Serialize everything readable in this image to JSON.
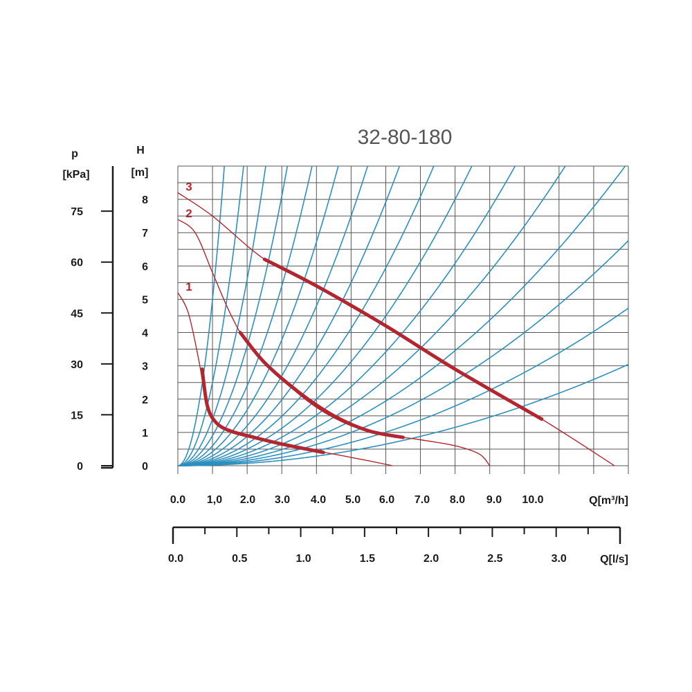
{
  "chart_data": {
    "type": "line",
    "title": "32-80-180",
    "y_left": {
      "name": "p",
      "unit": "[kPa]",
      "ticks": [
        "0",
        "15",
        "30",
        "45",
        "60",
        "75"
      ],
      "ticks_values": [
        0,
        15,
        30,
        45,
        60,
        75
      ]
    },
    "y_main": {
      "name": "H",
      "unit": "[m]",
      "ticks": [
        "0",
        "1",
        "2",
        "3",
        "4",
        "5",
        "6",
        "7",
        "8"
      ],
      "ylim": [
        0,
        9
      ]
    },
    "x_main": {
      "label": "Q[m³/h]",
      "ticks": [
        "0.0",
        "1,0",
        "2.0",
        "3.0",
        "4.0",
        "5.0",
        "6.0",
        "7.0",
        "8.0",
        "9.0",
        "10.0"
      ],
      "xlim": [
        0,
        13
      ]
    },
    "x_secondary": {
      "label": "Q[l/s]",
      "ticks": [
        "0.0",
        "0.5",
        "1.0",
        "1.5",
        "2.0",
        "2.5",
        "3.0"
      ],
      "ticks_values": [
        0,
        0.5,
        1.0,
        1.5,
        2.0,
        2.5,
        3.0
      ],
      "xlim": [
        0,
        3.5
      ]
    },
    "grid": true,
    "colors": {
      "pump_curve": "#b3262f",
      "system_curve": "#2b8fbf",
      "grid": "#555555",
      "axis": "#1a1a1a"
    },
    "series": [
      {
        "name": "1",
        "line": [
          [
            0,
            5.2
          ],
          [
            0.3,
            4.6
          ],
          [
            0.6,
            3.2
          ],
          [
            0.8,
            2.0
          ],
          [
            1.0,
            1.4
          ],
          [
            1.5,
            1.05
          ],
          [
            2.5,
            0.8
          ],
          [
            3.5,
            0.55
          ],
          [
            4.5,
            0.35
          ],
          [
            5.5,
            0.15
          ],
          [
            6.2,
            0.0
          ]
        ],
        "highlight": [
          [
            0.7,
            2.9
          ],
          [
            0.85,
            1.8
          ],
          [
            1.1,
            1.3
          ],
          [
            1.5,
            1.05
          ],
          [
            2.2,
            0.85
          ],
          [
            3.0,
            0.65
          ],
          [
            4.2,
            0.4
          ]
        ]
      },
      {
        "name": "2",
        "line": [
          [
            0,
            7.4
          ],
          [
            0.5,
            7.0
          ],
          [
            1.0,
            5.8
          ],
          [
            1.5,
            4.6
          ],
          [
            2.0,
            3.7
          ],
          [
            3.0,
            2.6
          ],
          [
            4.0,
            1.75
          ],
          [
            5.0,
            1.2
          ],
          [
            6.0,
            0.92
          ],
          [
            6.5,
            0.85
          ],
          [
            7.0,
            0.78
          ],
          [
            8.0,
            0.6
          ],
          [
            8.7,
            0.35
          ],
          [
            9.0,
            0.0
          ]
        ],
        "highlight": [
          [
            1.8,
            4.0
          ],
          [
            2.5,
            3.1
          ],
          [
            3.5,
            2.2
          ],
          [
            4.5,
            1.5
          ],
          [
            5.5,
            1.05
          ],
          [
            6.5,
            0.85
          ]
        ]
      },
      {
        "name": "3",
        "line": [
          [
            0,
            8.2
          ],
          [
            1.0,
            7.5
          ],
          [
            2.5,
            6.2
          ],
          [
            4.0,
            5.4
          ],
          [
            6.0,
            4.2
          ],
          [
            8.0,
            2.9
          ],
          [
            10.5,
            1.4
          ],
          [
            12.6,
            0.0
          ]
        ],
        "highlight": [
          [
            2.5,
            6.2
          ],
          [
            4.0,
            5.4
          ],
          [
            6.0,
            4.2
          ],
          [
            8.0,
            2.9
          ],
          [
            10.5,
            1.4
          ]
        ]
      }
    ],
    "system_curves_k": [
      5.0,
      2.5,
      1.4,
      0.9,
      0.6,
      0.42,
      0.3,
      0.22,
      0.165,
      0.125,
      0.095,
      0.072,
      0.054,
      0.04,
      0.028,
      0.018
    ]
  }
}
